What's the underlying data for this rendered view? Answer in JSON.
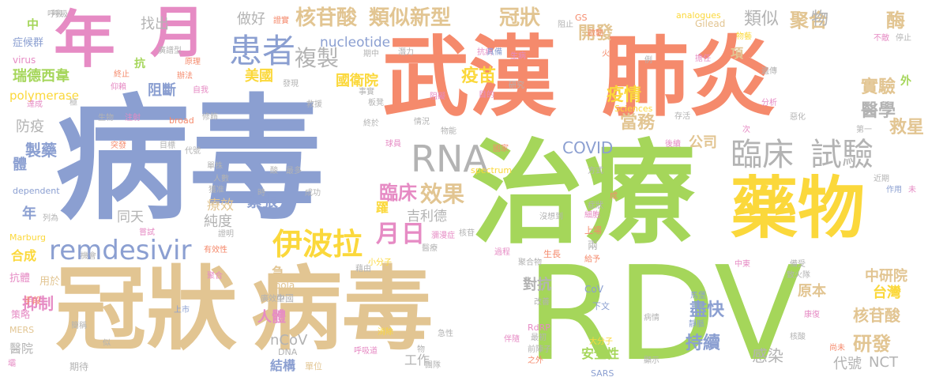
{
  "palette": {
    "blue": "#8b9fd1",
    "green": "#a5d65a",
    "orange": "#f58a6c",
    "pink": "#e68bc4",
    "tan": "#e2c592",
    "yellow": "#fbd83b",
    "gray": "#b3b3b3"
  },
  "words": [
    {
      "text": "病毒",
      "color": "blue"
    },
    {
      "text": "治療",
      "color": "green"
    },
    {
      "text": "RDV",
      "color": "green"
    },
    {
      "text": "武漢",
      "color": "orange"
    },
    {
      "text": "肺炎",
      "color": "orange"
    },
    {
      "text": "冠狀",
      "color": "tan"
    },
    {
      "text": "病毒",
      "color": "tan"
    },
    {
      "text": "藥物",
      "color": "yellow"
    },
    {
      "text": "年",
      "color": "pink"
    },
    {
      "text": "月",
      "color": "pink"
    },
    {
      "text": "臨床",
      "color": "gray"
    },
    {
      "text": "試驗",
      "color": "gray"
    },
    {
      "text": "remdesivir",
      "color": "blue"
    },
    {
      "text": "伊波拉",
      "color": "yellow"
    },
    {
      "text": "患者",
      "color": "blue"
    },
    {
      "text": "RNA",
      "color": "gray"
    },
    {
      "text": "核苷酸",
      "color": "tan"
    },
    {
      "text": "類似新型",
      "color": "tan"
    },
    {
      "text": "冠狀",
      "color": "tan"
    },
    {
      "text": "複製",
      "color": "gray"
    },
    {
      "text": "月",
      "color": "pink"
    },
    {
      "text": "日",
      "color": "pink"
    },
    {
      "text": "效果",
      "color": "tan"
    },
    {
      "text": "臨床",
      "color": "pink"
    },
    {
      "text": "開發",
      "color": "tan"
    },
    {
      "text": "疫情",
      "color": "yellow"
    },
    {
      "text": "疫苗",
      "color": "yellow"
    },
    {
      "text": "當務",
      "color": "tan"
    },
    {
      "text": "聚合",
      "color": "tan"
    },
    {
      "text": "酶",
      "color": "tan"
    },
    {
      "text": "類似",
      "color": "gray"
    },
    {
      "text": "物",
      "color": "gray"
    },
    {
      "text": "實驗",
      "color": "tan"
    },
    {
      "text": "醫學",
      "color": "gray"
    },
    {
      "text": "救星",
      "color": "tan"
    },
    {
      "text": "瑞德西韋",
      "color": "green"
    },
    {
      "text": "polymerase",
      "color": "yellow"
    },
    {
      "text": "nucleotide",
      "color": "blue"
    },
    {
      "text": "美國",
      "color": "yellow"
    },
    {
      "text": "國衛院",
      "color": "yellow"
    },
    {
      "text": "找出",
      "color": "gray"
    },
    {
      "text": "做好",
      "color": "gray"
    },
    {
      "text": "阻斷",
      "color": "blue"
    },
    {
      "text": "COVID",
      "color": "blue"
    },
    {
      "text": "公司",
      "color": "tan"
    },
    {
      "text": "吉利德",
      "color": "gray"
    },
    {
      "text": "緊張",
      "color": "blue"
    },
    {
      "text": "純度",
      "color": "gray"
    },
    {
      "text": "同天",
      "color": "gray"
    },
    {
      "text": "療效",
      "color": "tan"
    },
    {
      "text": "中研院",
      "color": "tan"
    },
    {
      "text": "台灣",
      "color": "yellow"
    },
    {
      "text": "核苷酸",
      "color": "tan"
    },
    {
      "text": "原本",
      "color": "tan"
    },
    {
      "text": "研發",
      "color": "tan"
    },
    {
      "text": "代號",
      "color": "gray"
    },
    {
      "text": "NCT",
      "color": "gray"
    },
    {
      "text": "感染",
      "color": "gray"
    },
    {
      "text": "盡快",
      "color": "blue"
    },
    {
      "text": "持續",
      "color": "blue"
    },
    {
      "text": "對抗",
      "color": "gray"
    },
    {
      "text": "人體",
      "color": "pink"
    },
    {
      "text": "nCoV",
      "color": "gray"
    },
    {
      "text": "結構",
      "color": "blue"
    },
    {
      "text": "工作",
      "color": "gray"
    },
    {
      "text": "安全性",
      "color": "green"
    },
    {
      "text": "抑制",
      "color": "pink"
    },
    {
      "text": "製藥",
      "color": "blue"
    },
    {
      "text": "防疫",
      "color": "gray"
    },
    {
      "text": "體",
      "color": "blue"
    },
    {
      "text": "年",
      "color": "blue"
    },
    {
      "text": "合成",
      "color": "yellow"
    },
    {
      "text": "醫院",
      "color": "gray"
    },
    {
      "text": "抗",
      "color": "green"
    },
    {
      "text": "中",
      "color": "green"
    },
    {
      "text": "症候群",
      "color": "blue"
    },
    {
      "text": "virus",
      "color": "pink"
    },
    {
      "text": "抗體",
      "color": "pink"
    },
    {
      "text": "用於",
      "color": "tan"
    },
    {
      "text": "手段",
      "color": "orange"
    },
    {
      "text": "策略",
      "color": "pink"
    },
    {
      "text": "期待",
      "color": "gray"
    },
    {
      "text": "MERS",
      "color": "tan"
    },
    {
      "text": "Ebola",
      "color": "tan"
    },
    {
      "text": "中國",
      "color": "gray"
    },
    {
      "text": "DNA",
      "color": "gray"
    },
    {
      "text": "單位",
      "color": "tan"
    },
    {
      "text": "CoV",
      "color": "blue"
    },
    {
      "text": "下文",
      "color": "blue"
    },
    {
      "text": "RdRP",
      "color": "pink"
    },
    {
      "text": "Gilead",
      "color": "tan"
    },
    {
      "text": "analogues",
      "color": "yellow"
    },
    {
      "text": "Sciences",
      "color": "yellow"
    },
    {
      "text": "spectrum",
      "color": "yellow"
    },
    {
      "text": "broad",
      "color": "orange"
    },
    {
      "text": "dependent",
      "color": "blue"
    },
    {
      "text": "Marburg",
      "color": "yellow"
    },
    {
      "text": "SARS",
      "color": "blue"
    },
    {
      "text": "GS",
      "color": "orange"
    },
    {
      "text": "呼吸",
      "color": "gray"
    },
    {
      "text": "突發",
      "color": "orange"
    },
    {
      "text": "生物",
      "color": "gray"
    },
    {
      "text": "注射",
      "color": "pink"
    },
    {
      "text": "目標",
      "color": "gray"
    },
    {
      "text": "發現",
      "color": "gray"
    },
    {
      "text": "救援",
      "color": "gray"
    },
    {
      "text": "終於",
      "color": "gray"
    },
    {
      "text": "生長",
      "color": "orange"
    },
    {
      "text": "上場",
      "color": "orange"
    },
    {
      "text": "馬堡",
      "color": "blue"
    },
    {
      "text": "靜脈",
      "color": "blue"
    },
    {
      "text": "病情",
      "color": "gray"
    },
    {
      "text": "康復",
      "color": "pink"
    },
    {
      "text": "核酸",
      "color": "gray"
    },
    {
      "text": "尚未",
      "color": "orange"
    },
    {
      "text": "顯示",
      "color": "gray"
    },
    {
      "text": "過程",
      "color": "pink"
    },
    {
      "text": "聚合物",
      "color": "gray"
    },
    {
      "text": "給予",
      "color": "orange"
    },
    {
      "text": "兩",
      "color": "gray"
    },
    {
      "text": "細胞",
      "color": "pink"
    },
    {
      "text": "成",
      "color": "orange"
    },
    {
      "text": "症狀",
      "color": "gray"
    },
    {
      "text": "沒想到",
      "color": "gray"
    },
    {
      "text": "大分子",
      "color": "yellow"
    },
    {
      "text": "最初",
      "color": "gray"
    },
    {
      "text": "前陣子",
      "color": "gray"
    },
    {
      "text": "之外",
      "color": "orange"
    },
    {
      "text": "伴隨",
      "color": "pink"
    },
    {
      "text": "改善",
      "color": "gray"
    },
    {
      "text": "急性",
      "color": "gray"
    },
    {
      "text": "物",
      "color": "gray"
    },
    {
      "text": "團隊",
      "color": "gray"
    },
    {
      "text": "消除",
      "color": "yellow"
    },
    {
      "text": "呼吸道",
      "color": "pink"
    },
    {
      "text": "小分子",
      "color": "yellow"
    },
    {
      "text": "藉由",
      "color": "gray"
    },
    {
      "text": "醫療",
      "color": "gray"
    },
    {
      "text": "瀰漫症",
      "color": "pink"
    },
    {
      "text": "核苷",
      "color": "gray"
    },
    {
      "text": "方式",
      "color": "gray"
    },
    {
      "text": "國家",
      "color": "orange"
    },
    {
      "text": "球員",
      "color": "pink"
    },
    {
      "text": "情況",
      "color": "gray"
    },
    {
      "text": "物能",
      "color": "gray"
    },
    {
      "text": "事實",
      "color": "gray"
    },
    {
      "text": "板凳",
      "color": "gray"
    },
    {
      "text": "阻礙",
      "color": "pink"
    },
    {
      "text": "研究",
      "color": "gray"
    },
    {
      "text": "目的",
      "color": "pink"
    },
    {
      "text": "抗病",
      "color": "pink"
    },
    {
      "text": "生病",
      "color": "pink"
    },
    {
      "text": "具備",
      "color": "blue"
    },
    {
      "text": "潛力",
      "color": "gray"
    },
    {
      "text": "期中",
      "color": "gray"
    },
    {
      "text": "阻止",
      "color": "gray"
    },
    {
      "text": "啟動",
      "color": "orange"
    },
    {
      "text": "火速",
      "color": "orange"
    },
    {
      "text": "擔任",
      "color": "pink"
    },
    {
      "text": "物藝",
      "color": "yellow"
    },
    {
      "text": "例",
      "color": "gray"
    },
    {
      "text": "不敵",
      "color": "pink"
    },
    {
      "text": "停止",
      "color": "gray"
    },
    {
      "text": "遺傳",
      "color": "gray"
    },
    {
      "text": "分析",
      "color": "pink"
    },
    {
      "text": "惡化",
      "color": "gray"
    },
    {
      "text": "外",
      "color": "green"
    },
    {
      "text": "第一",
      "color": "gray"
    },
    {
      "text": "次",
      "color": "pink"
    },
    {
      "text": "存活",
      "color": "gray"
    },
    {
      "text": "後續",
      "color": "pink"
    },
    {
      "text": "近期",
      "color": "gray"
    },
    {
      "text": "作用",
      "color": "blue"
    },
    {
      "text": "未",
      "color": "pink"
    },
    {
      "text": "項",
      "color": "tan"
    },
    {
      "text": "證實",
      "color": "orange"
    },
    {
      "text": "廣譜型",
      "color": "gray"
    },
    {
      "text": "原理",
      "color": "orange"
    },
    {
      "text": "辦法",
      "color": "orange"
    },
    {
      "text": "自我",
      "color": "pink"
    },
    {
      "text": "終止",
      "color": "orange"
    },
    {
      "text": "仰賴",
      "color": "pink"
    },
    {
      "text": "達成",
      "color": "pink"
    },
    {
      "text": "極",
      "color": "gray"
    },
    {
      "text": "修飾",
      "color": "gray"
    },
    {
      "text": "代號",
      "color": "gray"
    },
    {
      "text": "單株",
      "color": "gray"
    },
    {
      "text": "人數",
      "color": "gray"
    },
    {
      "text": "上市",
      "color": "blue"
    },
    {
      "text": "獲准",
      "color": "gray"
    },
    {
      "text": "酸",
      "color": "gray"
    },
    {
      "text": "最多",
      "color": "gray"
    },
    {
      "text": "時",
      "color": "gray"
    },
    {
      "text": "成功",
      "color": "gray"
    },
    {
      "text": "證明",
      "color": "gray"
    },
    {
      "text": "有效性",
      "color": "orange"
    },
    {
      "text": "嘗試",
      "color": "pink"
    },
    {
      "text": "機會",
      "color": "gray"
    },
    {
      "text": "列為",
      "color": "gray"
    },
    {
      "text": "聚合",
      "color": "pink"
    },
    {
      "text": "廣效型",
      "color": "gray"
    },
    {
      "text": "急",
      "color": "tan"
    },
    {
      "text": "躍",
      "color": "yellow"
    },
    {
      "text": "簡稱",
      "color": "gray"
    },
    {
      "text": "似",
      "color": "gray"
    },
    {
      "text": "壩",
      "color": "pink"
    },
    {
      "text": "中東",
      "color": "pink"
    },
    {
      "text": "備受",
      "color": "gray"
    },
    {
      "text": "致火隊",
      "color": "gray"
    },
    {
      "text": "呼吸",
      "color": "gray"
    }
  ]
}
